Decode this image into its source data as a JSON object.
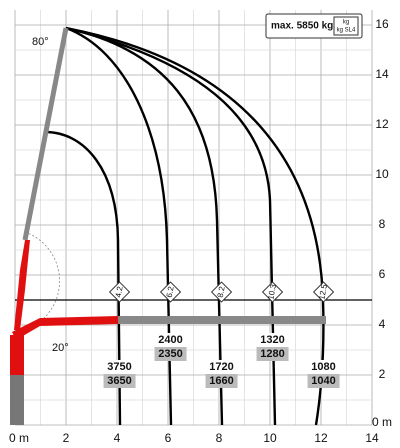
{
  "legend": {
    "max": "max. 5850 kg",
    "unit_top": "kg",
    "unit_bottom": "kg SL4"
  },
  "angles": [
    "80°",
    "20°"
  ],
  "x_axis": [
    "0 m",
    "2",
    "4",
    "6",
    "8",
    "10",
    "12",
    "14"
  ],
  "y_axis": [
    "0 m",
    "2",
    "4",
    "6",
    "8",
    "10",
    "12",
    "14",
    "16"
  ],
  "outreach_labels": [
    "4.2",
    "6.2",
    "8.2",
    "10.3",
    "12.5"
  ],
  "loads": [
    {
      "kg": "3750",
      "sl4": "3650"
    },
    {
      "kg": "2400",
      "sl4": "2350"
    },
    {
      "kg": "1720",
      "sl4": "1660"
    },
    {
      "kg": "1320",
      "sl4": "1280"
    },
    {
      "kg": "1080",
      "sl4": "1040"
    }
  ]
}
